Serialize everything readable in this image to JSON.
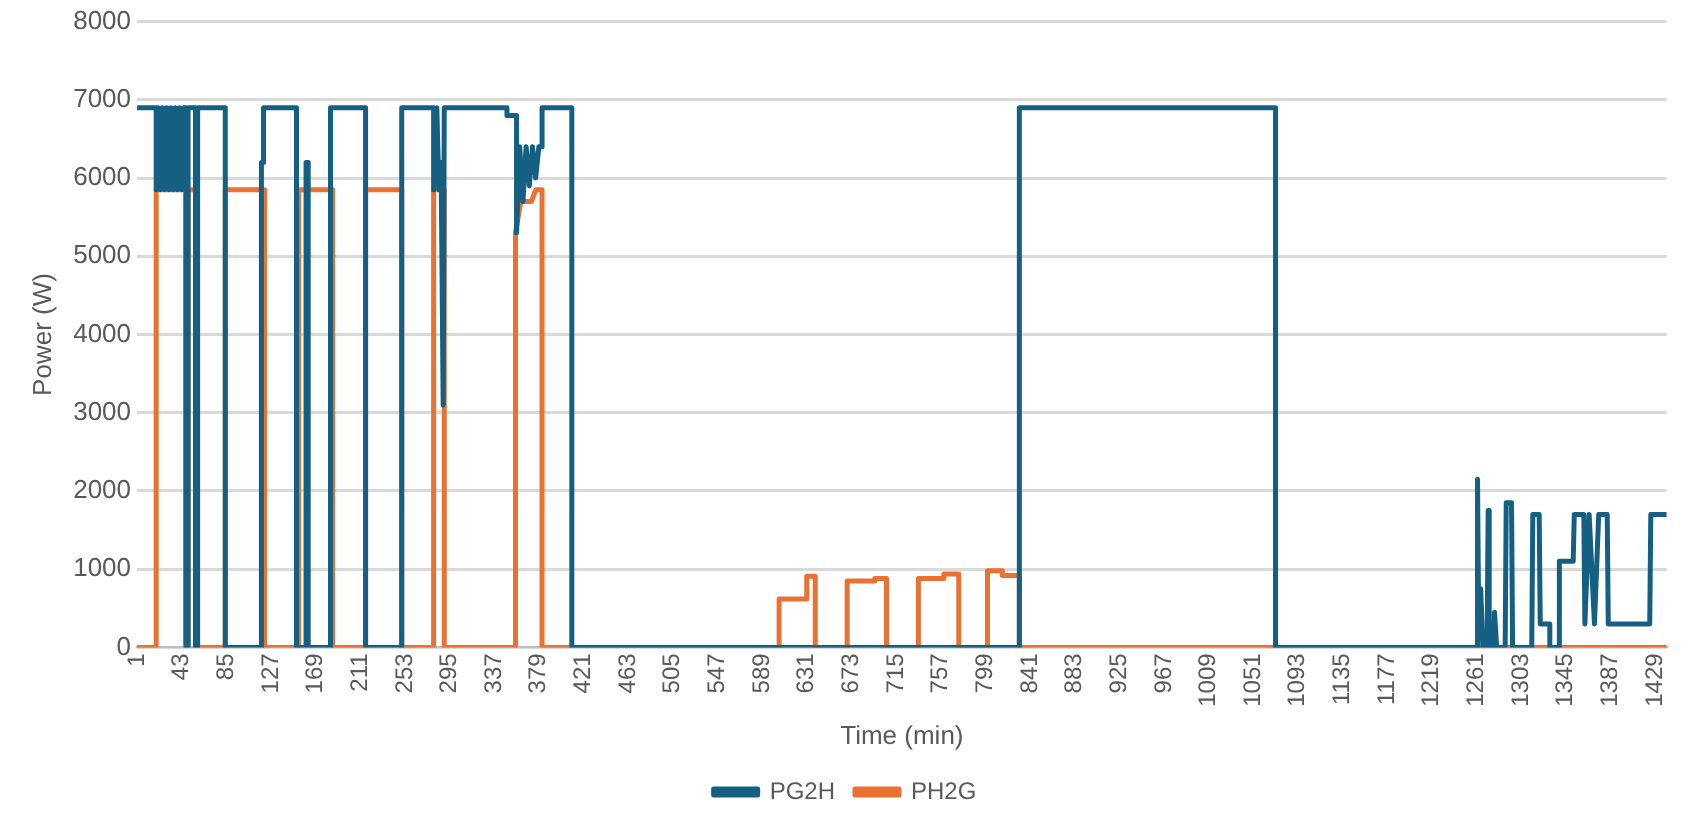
{
  "chart_data": {
    "type": "line",
    "xlabel": "Time (min)",
    "ylabel": "Power (W)",
    "xlim": [
      1,
      1440
    ],
    "xticks": [
      1,
      43,
      85,
      127,
      169,
      211,
      253,
      295,
      337,
      379,
      421,
      463,
      505,
      547,
      589,
      631,
      673,
      715,
      757,
      799,
      841,
      883,
      925,
      967,
      1009,
      1051,
      1093,
      1135,
      1177,
      1219,
      1261,
      1303,
      1345,
      1387,
      1429
    ],
    "ylim": [
      0,
      8000
    ],
    "yticks": [
      0,
      1000,
      2000,
      3000,
      4000,
      5000,
      6000,
      7000,
      8000
    ],
    "grid": "y",
    "legend": "bottom",
    "marker": "none",
    "line_style": "solid",
    "series": [
      {
        "name": "PG2H",
        "color": "#156082",
        "x": [
          1,
          19,
          19,
          21,
          23,
          25,
          27,
          29,
          31,
          33,
          35,
          37,
          39,
          41,
          43,
          45,
          47,
          47,
          49,
          49,
          53,
          53,
          56,
          56,
          58,
          58,
          84,
          84,
          118,
          118,
          120,
          120,
          151,
          151,
          160,
          160,
          162,
          162,
          183,
          183,
          216,
          216,
          250,
          250,
          280,
          280,
          283,
          285,
          287,
          289,
          290,
          349,
          349,
          358,
          358,
          361,
          364,
          367,
          370,
          373,
          376,
          379,
          382,
          382,
          410,
          410,
          831,
          831,
          1072,
          1072,
          1261,
          1262,
          1263,
          1265,
          1267,
          1271,
          1272,
          1273,
          1277,
          1278,
          1280,
          1288,
          1289,
          1294,
          1295,
          1313,
          1314,
          1320,
          1321,
          1330,
          1330,
          1338,
          1339,
          1352,
          1353,
          1362,
          1363,
          1367,
          1372,
          1376,
          1384,
          1385,
          1424,
          1425,
          1440
        ],
        "values": [
          6900,
          6900,
          5850,
          6900,
          5850,
          6900,
          5850,
          6900,
          5850,
          6900,
          5850,
          6900,
          5850,
          6900,
          5850,
          6900,
          6900,
          0,
          0,
          6900,
          6900,
          6900,
          6900,
          0,
          0,
          6900,
          6900,
          0,
          0,
          6200,
          6200,
          6900,
          6900,
          0,
          0,
          6200,
          6200,
          0,
          0,
          6900,
          6900,
          0,
          0,
          6900,
          6900,
          5850,
          6900,
          5850,
          6200,
          3100,
          6900,
          6900,
          6800,
          6800,
          5300,
          6400,
          5700,
          6400,
          5900,
          6400,
          6000,
          6400,
          6400,
          6900,
          6900,
          0,
          0,
          6900,
          6900,
          0,
          0,
          2150,
          500,
          750,
          0,
          0,
          1750,
          0,
          0,
          450,
          0,
          0,
          1850,
          1850,
          0,
          0,
          1700,
          1700,
          300,
          300,
          0,
          0,
          1100,
          1100,
          1700,
          1700,
          300,
          1700,
          300,
          1700,
          1700,
          300,
          300,
          1700,
          1700
        ]
      },
      {
        "name": "PH2G",
        "color": "#e97132",
        "x": [
          1,
          19,
          19,
          47,
          47,
          49,
          49,
          56,
          56,
          84,
          84,
          121,
          121,
          153,
          153,
          185,
          185,
          216,
          216,
          250,
          250,
          280,
          280,
          290,
          290,
          357,
          357,
          362,
          372,
          376,
          382,
          382,
          605,
          605,
          631,
          631,
          639,
          639,
          669,
          669,
          695,
          695,
          706,
          706,
          736,
          736,
          760,
          760,
          774,
          774,
          801,
          801,
          815,
          815,
          831,
          831,
          1440
        ],
        "values": [
          0,
          0,
          5850,
          5850,
          0,
          0,
          5850,
          5850,
          0,
          0,
          5850,
          5850,
          0,
          0,
          5850,
          5850,
          0,
          0,
          5850,
          5850,
          0,
          0,
          5850,
          5850,
          0,
          0,
          5300,
          5700,
          5700,
          5850,
          5850,
          0,
          0,
          620,
          620,
          910,
          910,
          0,
          0,
          850,
          850,
          880,
          880,
          0,
          0,
          880,
          880,
          940,
          940,
          0,
          0,
          980,
          980,
          920,
          920,
          0,
          0
        ]
      }
    ]
  }
}
